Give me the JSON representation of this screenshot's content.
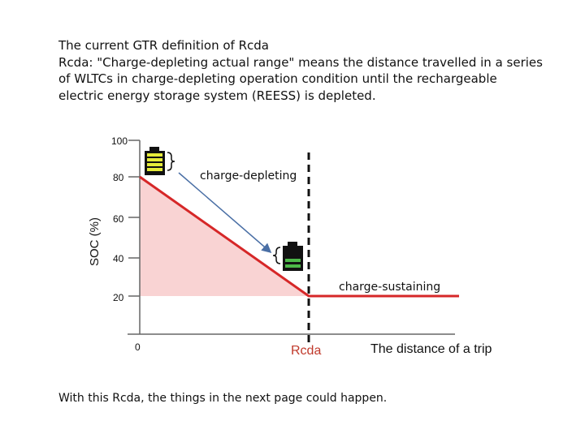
{
  "intro": {
    "line1": "The current GTR definition of Rcda",
    "line2": "Rcda: \"Charge-depleting actual range\" means the distance travelled in a series",
    "line3": "of WLTCs in charge-depleting operation condition until the rechargeable",
    "line4": "electric energy storage system (REESS) is depleted."
  },
  "footer": "With this Rcda, the things in the next page could happen.",
  "chart_data": {
    "type": "line",
    "ylabel": "SOC (%)",
    "xlabel": "The distance of a trip",
    "y_ticks": [
      "100",
      "80",
      "60",
      "40",
      "20"
    ],
    "x_origin_label": "0",
    "rcda_label": "Rcda",
    "labels": {
      "charge_depleting": "charge-depleting",
      "charge_sustaining": "charge-sustaining"
    },
    "series": [
      {
        "values": [
          [
            0,
            80
          ],
          [
            1,
            20
          ],
          [
            1.7,
            20
          ]
        ]
      }
    ],
    "colors": {
      "line": "#d62728",
      "fill": "#f9d3d3",
      "battery_full": "#e6ec3a",
      "battery_low": "#4cb848"
    }
  }
}
